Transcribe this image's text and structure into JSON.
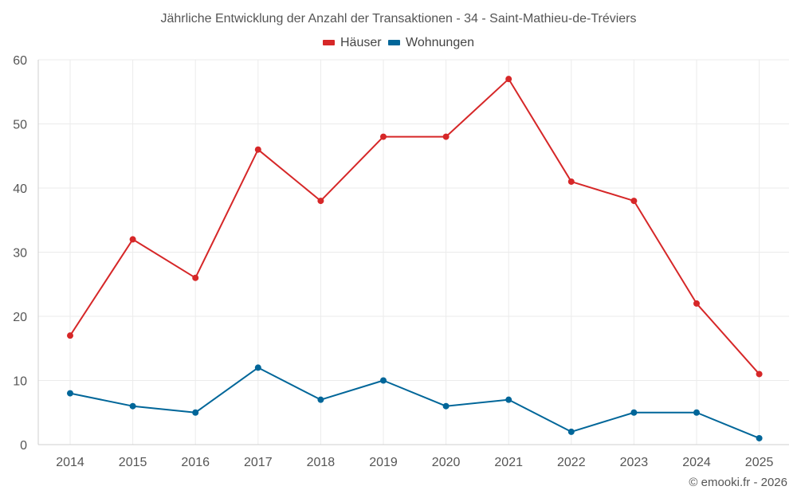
{
  "chart_data": {
    "type": "line",
    "title": "Jährliche Entwicklung der Anzahl der Transaktionen - 34 - Saint-Mathieu-de-Tréviers",
    "categories": [
      "2014",
      "2015",
      "2016",
      "2017",
      "2018",
      "2019",
      "2020",
      "2021",
      "2022",
      "2023",
      "2024",
      "2025"
    ],
    "series": [
      {
        "name": "Häuser",
        "color": "#d62728",
        "values": [
          17,
          32,
          26,
          46,
          38,
          48,
          48,
          57,
          41,
          38,
          22,
          11
        ]
      },
      {
        "name": "Wohnungen",
        "color": "#006699",
        "values": [
          8,
          6,
          5,
          12,
          7,
          10,
          6,
          7,
          2,
          5,
          5,
          1
        ]
      }
    ],
    "ylim": [
      0,
      60
    ],
    "yticks": [
      0,
      10,
      20,
      30,
      40,
      50,
      60
    ],
    "xlabel": "",
    "ylabel": "",
    "grid": true,
    "legend_position": "top-center"
  },
  "credit": "© emooki.fr - 2026"
}
